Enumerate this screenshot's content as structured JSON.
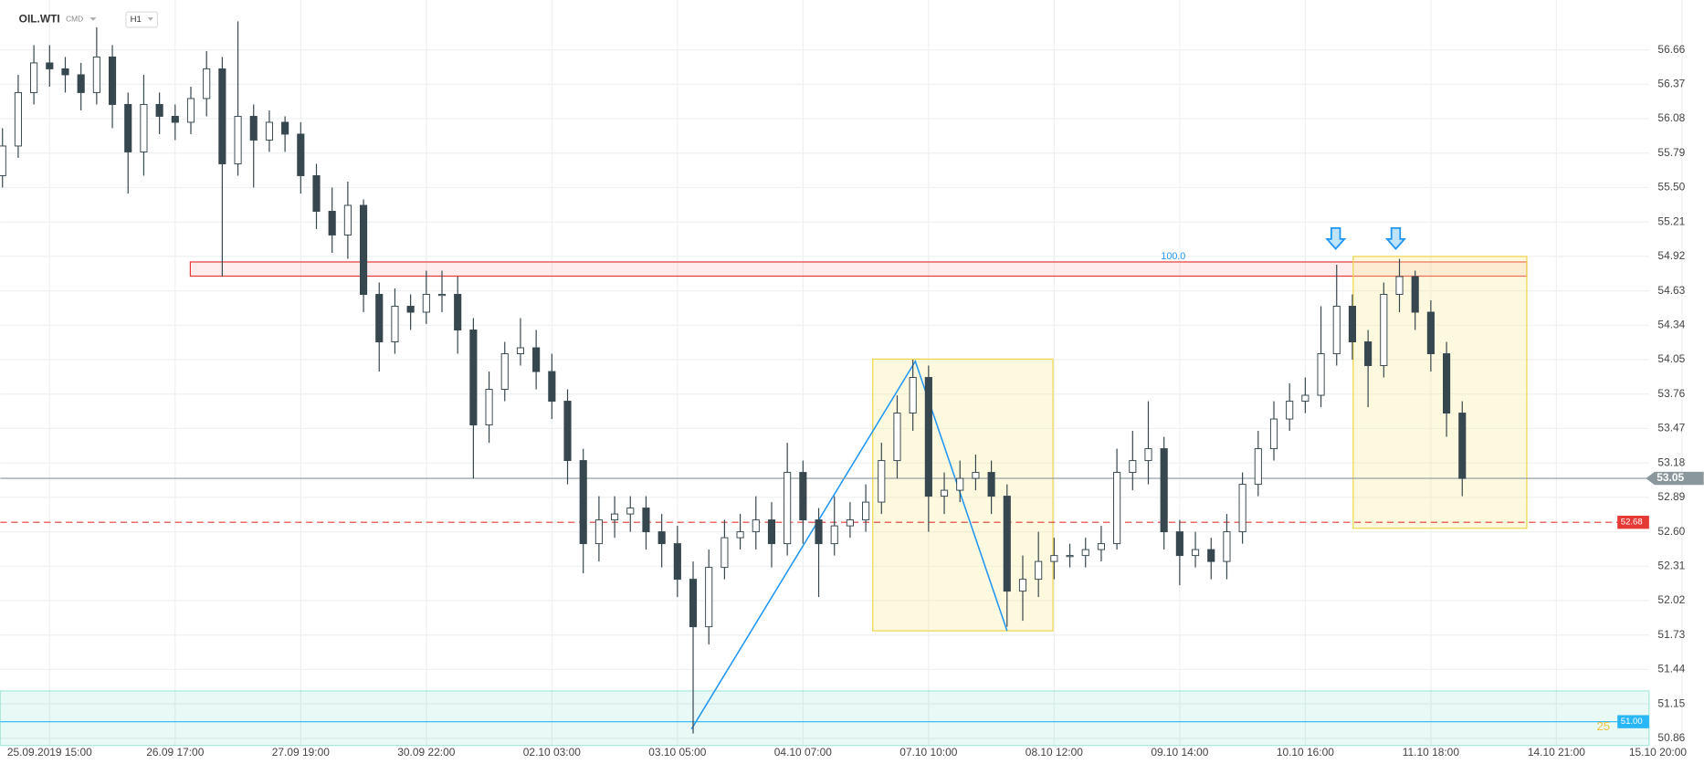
{
  "chart_data": {
    "type": "candlestick",
    "title": "OIL.WTI",
    "instrument_class": "CMD",
    "timeframe": "H1",
    "categories": [
      null,
      null,
      null,
      "25.09.2019 15:00",
      null,
      null,
      null,
      null,
      null,
      null,
      null,
      "26.09 17:00",
      null,
      null,
      null,
      null,
      null,
      null,
      null,
      "27.09 19:00",
      null,
      null,
      null,
      null,
      null,
      null,
      null,
      "30.09 22:00",
      null,
      null,
      null,
      null,
      null,
      null,
      null,
      "02.10 03:00",
      null,
      null,
      null,
      null,
      null,
      null,
      null,
      "03.10 05:00",
      null,
      null,
      null,
      null,
      null,
      null,
      null,
      "04.10 07:00",
      null,
      null,
      null,
      null,
      null,
      null,
      null,
      "07.10 10:00",
      null,
      null,
      null,
      null,
      null,
      null,
      null,
      "08.10 12:00",
      null,
      null,
      null,
      null,
      null,
      null,
      null,
      "09.10 14:00",
      null,
      null,
      null,
      null,
      null,
      null,
      null,
      "10.10 16:00",
      null,
      null,
      null,
      null,
      null,
      null,
      null,
      "11.10 18:00",
      null,
      null,
      null,
      null,
      null,
      null,
      null,
      "14.10 21:00",
      null,
      null,
      null,
      null,
      null,
      null,
      null,
      "15.10 20:00"
    ],
    "open": [
      55.6,
      55.85,
      56.3,
      56.55,
      56.5,
      56.45,
      56.3,
      56.6,
      56.2,
      55.8,
      56.2,
      56.1,
      56.05,
      56.25,
      56.5,
      55.7,
      56.1,
      55.9,
      56.05,
      55.95,
      55.6,
      55.3,
      55.1,
      55.35,
      54.6,
      54.2,
      54.5,
      54.45,
      54.6,
      54.6,
      54.3,
      53.5,
      53.8,
      54.1,
      54.15,
      53.95,
      53.7,
      53.2,
      52.5,
      52.7,
      52.75,
      52.8,
      52.6,
      52.5,
      52.2,
      51.8,
      52.3,
      52.55,
      52.6,
      52.7,
      52.5,
      53.1,
      52.7,
      52.5,
      52.65,
      52.7,
      52.85,
      53.2,
      53.6,
      53.9,
      52.9,
      52.95,
      53.05,
      53.1,
      52.9,
      52.1,
      52.2,
      52.35,
      52.4,
      52.4,
      52.45,
      52.5,
      53.1,
      53.2,
      53.3,
      52.6,
      52.4,
      52.45,
      52.35,
      52.6,
      53.0,
      53.3,
      53.55,
      53.7,
      53.75,
      54.1,
      54.5,
      54.2,
      54.0,
      54.6,
      54.75,
      54.45,
      54.1,
      53.6,
      null,
      null,
      null,
      null,
      null,
      null,
      null,
      null,
      null,
      null,
      null,
      null,
      null,
      null
    ],
    "high": [
      56.0,
      56.45,
      56.7,
      56.7,
      56.6,
      56.55,
      56.85,
      56.7,
      56.3,
      56.45,
      56.3,
      56.2,
      56.35,
      56.65,
      56.6,
      56.9,
      56.2,
      56.15,
      56.1,
      56.05,
      55.7,
      55.5,
      55.55,
      55.4,
      54.7,
      54.65,
      54.6,
      54.8,
      54.8,
      54.75,
      54.4,
      53.95,
      54.2,
      54.4,
      54.3,
      54.1,
      53.8,
      53.3,
      52.9,
      52.9,
      52.9,
      52.9,
      52.75,
      52.65,
      52.35,
      52.45,
      52.7,
      52.75,
      52.9,
      52.85,
      53.35,
      53.2,
      52.8,
      52.9,
      52.85,
      53.0,
      53.35,
      53.75,
      54.05,
      54.0,
      53.1,
      53.2,
      53.25,
      53.2,
      53.0,
      52.4,
      52.6,
      52.55,
      52.5,
      52.55,
      52.65,
      53.3,
      53.45,
      53.7,
      53.4,
      52.7,
      52.6,
      52.55,
      52.75,
      53.1,
      53.45,
      53.7,
      53.85,
      53.9,
      54.5,
      54.85,
      54.6,
      54.3,
      54.7,
      54.9,
      54.8,
      54.55,
      54.2,
      53.7,
      null,
      null,
      null,
      null,
      null,
      null,
      null,
      null,
      null,
      null,
      null,
      null,
      null,
      null
    ],
    "low": [
      55.5,
      55.75,
      56.2,
      56.35,
      56.3,
      56.15,
      56.2,
      56.0,
      55.45,
      55.6,
      55.95,
      55.9,
      55.95,
      56.1,
      54.75,
      55.6,
      55.5,
      55.8,
      55.8,
      55.45,
      55.15,
      54.95,
      54.9,
      54.45,
      53.95,
      54.1,
      54.3,
      54.35,
      54.45,
      54.1,
      53.05,
      53.35,
      53.7,
      54.0,
      53.8,
      53.55,
      53.0,
      52.25,
      52.35,
      52.55,
      52.6,
      52.45,
      52.3,
      52.05,
      50.9,
      51.65,
      52.2,
      52.45,
      52.45,
      52.3,
      52.4,
      52.5,
      52.05,
      52.4,
      52.55,
      52.6,
      52.75,
      53.05,
      53.45,
      52.6,
      52.75,
      52.85,
      52.95,
      52.75,
      51.8,
      51.85,
      52.05,
      52.2,
      52.3,
      52.3,
      52.35,
      52.45,
      52.95,
      53.0,
      52.45,
      52.15,
      52.3,
      52.2,
      52.2,
      52.5,
      52.9,
      53.2,
      53.45,
      53.6,
      53.65,
      54.0,
      54.05,
      53.65,
      53.9,
      54.45,
      54.3,
      53.95,
      53.4,
      52.9,
      null,
      null,
      null,
      null,
      null,
      null,
      null,
      null,
      null,
      null,
      null,
      null,
      null,
      null
    ],
    "close": [
      55.85,
      56.3,
      56.55,
      56.5,
      56.45,
      56.3,
      56.6,
      56.2,
      55.8,
      56.2,
      56.1,
      56.05,
      56.25,
      56.5,
      55.7,
      56.1,
      55.9,
      56.05,
      55.95,
      55.6,
      55.3,
      55.1,
      55.35,
      54.6,
      54.2,
      54.5,
      54.45,
      54.6,
      54.6,
      54.3,
      53.5,
      53.8,
      54.1,
      54.15,
      53.95,
      53.7,
      53.2,
      52.5,
      52.7,
      52.75,
      52.8,
      52.6,
      52.5,
      52.2,
      51.8,
      52.3,
      52.55,
      52.6,
      52.7,
      52.5,
      53.1,
      52.7,
      52.5,
      52.65,
      52.7,
      52.85,
      53.2,
      53.6,
      53.9,
      52.9,
      52.95,
      53.05,
      53.1,
      52.9,
      52.1,
      52.2,
      52.35,
      52.4,
      52.4,
      52.45,
      52.5,
      53.1,
      53.2,
      53.3,
      52.6,
      52.4,
      52.45,
      52.35,
      52.6,
      53.0,
      53.3,
      53.55,
      53.7,
      53.75,
      54.1,
      54.5,
      54.2,
      54.0,
      54.6,
      54.75,
      54.45,
      54.1,
      53.6,
      53.05,
      null,
      null,
      null,
      null,
      null,
      null,
      null,
      null,
      null,
      null,
      null,
      null,
      null,
      null
    ],
    "up_color": "#ffffff",
    "down_color": "#37474f",
    "ylim": [
      50.8,
      57.08
    ],
    "yticks": [
      50.86,
      51.15,
      51.44,
      51.73,
      52.02,
      52.31,
      {
        "value": 52.6,
        "label": "52.60"
      },
      52.89,
      53.18,
      53.47,
      53.76,
      54.05,
      54.34,
      54.63,
      54.92,
      55.21,
      {
        "value": 55.5,
        "label": "55.50"
      },
      55.79,
      56.08,
      56.37,
      56.66
    ],
    "grid": true,
    "price_lines": [
      {
        "value": 53.05,
        "color": "#8a979c",
        "dashed": false
      },
      {
        "value": 52.68,
        "color": "#e53935",
        "dashed": true
      },
      {
        "value": {
          "value": 51,
          "label": "51.00"
        },
        "color": "#29b6f6",
        "dashed": false
      }
    ],
    "annotations": [
      {
        "text": "100.0"
      },
      {
        "text": "25"
      }
    ]
  }
}
